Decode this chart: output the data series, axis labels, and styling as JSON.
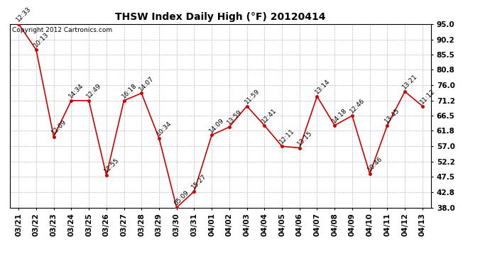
{
  "title": "THSW Index Daily High (°F) 20120414",
  "copyright": "Copyright 2012 Cartronics.com",
  "dates": [
    "03/21",
    "03/22",
    "03/23",
    "03/24",
    "03/25",
    "03/26",
    "03/27",
    "03/28",
    "03/29",
    "03/30",
    "03/31",
    "04/01",
    "04/02",
    "04/03",
    "04/04",
    "04/05",
    "04/06",
    "04/07",
    "04/08",
    "04/09",
    "04/10",
    "04/11",
    "04/12",
    "04/13"
  ],
  "values": [
    95.0,
    87.0,
    60.0,
    71.2,
    71.2,
    48.0,
    71.2,
    73.5,
    59.5,
    38.0,
    43.0,
    60.5,
    63.0,
    69.5,
    63.5,
    57.0,
    56.5,
    72.5,
    63.5,
    66.5,
    48.5,
    63.5,
    74.0,
    69.5
  ],
  "times": [
    "12:33",
    "10:13",
    "12:09",
    "14:34",
    "12:49",
    "12:55",
    "16:18",
    "14:07",
    "10:34",
    "05:09",
    "15:27",
    "14:09",
    "13:59",
    "11:59",
    "12:41",
    "12:11",
    "13:15",
    "13:14",
    "14:18",
    "12:46",
    "10:46",
    "13:45",
    "13:21",
    "11:12"
  ],
  "ylim": [
    38.0,
    95.0
  ],
  "yticks": [
    38.0,
    42.8,
    47.5,
    52.2,
    57.0,
    61.8,
    66.5,
    71.2,
    76.0,
    80.8,
    85.5,
    90.2,
    95.0
  ],
  "line_color": "#cc0000",
  "marker_color": "#cc0000",
  "bg_color": "#ffffff",
  "grid_color": "#bbbbbb",
  "title_fontsize": 10,
  "label_fontsize": 6.5,
  "tick_fontsize": 7.5,
  "copyright_fontsize": 6.5
}
